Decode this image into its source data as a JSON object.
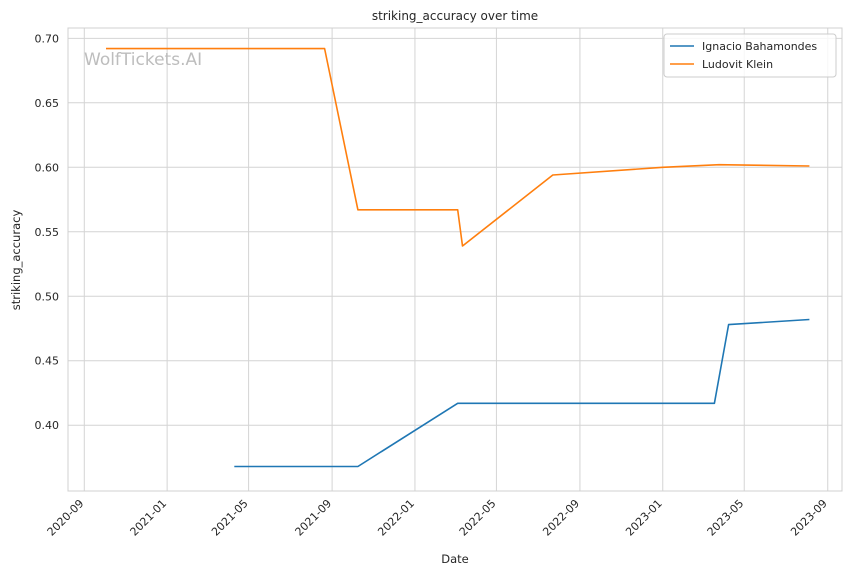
{
  "chart_data": {
    "type": "line",
    "title": "striking_accuracy over time",
    "xlabel": "Date",
    "ylabel": "striking_accuracy",
    "watermark": "WolfTickets.AI",
    "x_ticks": [
      "2020-09",
      "2021-01",
      "2021-05",
      "2021-09",
      "2022-01",
      "2022-05",
      "2022-09",
      "2023-01",
      "2023-05",
      "2023-09"
    ],
    "y_ticks": [
      "0.40",
      "0.45",
      "0.50",
      "0.55",
      "0.60",
      "0.65",
      "0.70"
    ],
    "xlim": [
      "2020-08-08",
      "2023-09-22"
    ],
    "ylim": [
      0.349,
      0.708
    ],
    "grid": true,
    "legend_position": "top-right",
    "series": [
      {
        "name": "Ignacio Bahamondes",
        "color": "#1f77b4",
        "points": [
          [
            "2021-04-10",
            0.368
          ],
          [
            "2021-10-09",
            0.368
          ],
          [
            "2022-03-05",
            0.417
          ],
          [
            "2023-03-18",
            0.417
          ],
          [
            "2023-04-08",
            0.478
          ],
          [
            "2023-08-05",
            0.482
          ]
        ]
      },
      {
        "name": "Ludovit Klein",
        "color": "#ff7f0e",
        "points": [
          [
            "2020-10-03",
            0.692
          ],
          [
            "2021-08-21",
            0.692
          ],
          [
            "2021-10-09",
            0.567
          ],
          [
            "2022-03-05",
            0.567
          ],
          [
            "2022-03-12",
            0.539
          ],
          [
            "2022-07-23",
            0.594
          ],
          [
            "2023-01-01",
            0.6
          ],
          [
            "2023-03-25",
            0.602
          ],
          [
            "2023-08-05",
            0.601
          ]
        ]
      }
    ]
  }
}
